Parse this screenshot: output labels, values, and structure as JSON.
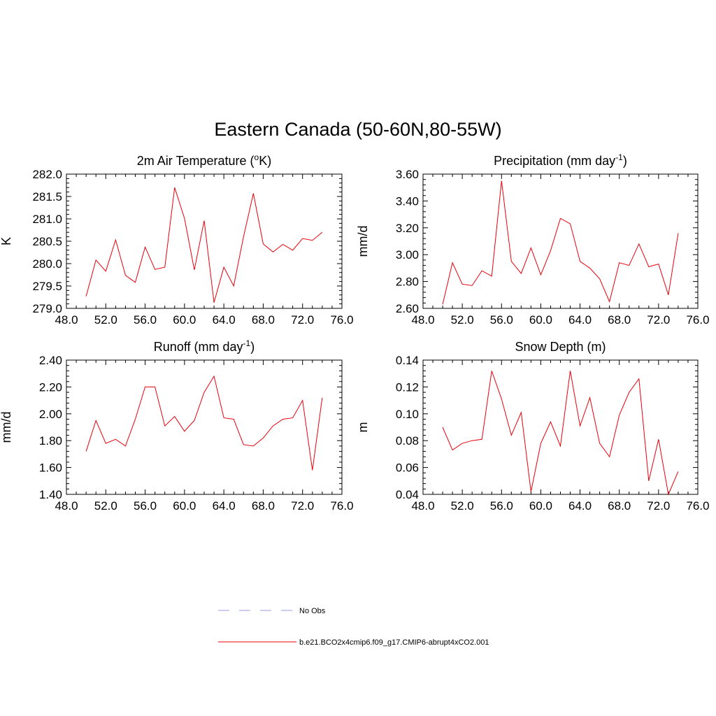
{
  "figure": {
    "title": "Eastern Canada (50-60N,80-55W)"
  },
  "legend": [
    {
      "label": "No Obs",
      "color": "#9999e6",
      "dashed": true
    },
    {
      "label": "b.e21.BCO2x4cmip6.f09_g17.CMIP6-abrupt4xCO2.001",
      "color": "#e8000b",
      "dashed": false
    }
  ],
  "series_color": "#e8000b",
  "chart_data": [
    {
      "type": "line",
      "title_main": "2m Air Temperature (",
      "title_sup": "o",
      "title_tail": "K)",
      "ylabel": "K",
      "xlim": [
        48,
        76
      ],
      "ylim": [
        279.0,
        282.0
      ],
      "xticks": [
        48,
        52,
        56,
        60,
        64,
        68,
        72,
        76
      ],
      "yticks": [
        279.0,
        279.5,
        280.0,
        280.5,
        281.0,
        281.5,
        282.0
      ],
      "xtick_labels": [
        "48.0",
        "52.0",
        "56.0",
        "60.0",
        "64.0",
        "68.0",
        "72.0",
        "76.0"
      ],
      "ytick_labels": [
        "279.0",
        "279.5",
        "280.0",
        "280.5",
        "281.0",
        "281.5",
        "282.0"
      ],
      "x": [
        50,
        51,
        52,
        53,
        54,
        55,
        56,
        57,
        58,
        59,
        60,
        61,
        62,
        63,
        64,
        65,
        66,
        67,
        68,
        69,
        70,
        71,
        72,
        73,
        74
      ],
      "series": [
        {
          "values": [
            279.27,
            280.08,
            279.83,
            280.53,
            279.74,
            279.58,
            280.37,
            279.87,
            279.92,
            281.7,
            281.01,
            279.86,
            280.96,
            279.13,
            279.92,
            279.5,
            280.6,
            281.57,
            280.44,
            280.26,
            280.43,
            280.3,
            280.56,
            280.52,
            280.7
          ]
        }
      ]
    },
    {
      "type": "line",
      "title_main": "Precipitation (mm day",
      "title_sup": "-1",
      "title_tail": ")",
      "ylabel": "mm/d",
      "xlim": [
        48,
        76
      ],
      "ylim": [
        2.6,
        3.6
      ],
      "xticks": [
        48,
        52,
        56,
        60,
        64,
        68,
        72,
        76
      ],
      "yticks": [
        2.6,
        2.8,
        3.0,
        3.2,
        3.4,
        3.6
      ],
      "xtick_labels": [
        "48.0",
        "52.0",
        "56.0",
        "60.0",
        "64.0",
        "68.0",
        "72.0",
        "76.0"
      ],
      "ytick_labels": [
        "2.60",
        "2.80",
        "3.00",
        "3.20",
        "3.40",
        "3.60"
      ],
      "x": [
        50,
        51,
        52,
        53,
        54,
        55,
        56,
        57,
        58,
        59,
        60,
        61,
        62,
        63,
        64,
        65,
        66,
        67,
        68,
        69,
        70,
        71,
        72,
        73,
        74
      ],
      "series": [
        {
          "values": [
            2.63,
            2.94,
            2.78,
            2.77,
            2.88,
            2.84,
            3.55,
            2.95,
            2.86,
            3.05,
            2.85,
            3.03,
            3.27,
            3.23,
            2.95,
            2.9,
            2.82,
            2.65,
            2.94,
            2.92,
            3.08,
            2.91,
            2.93,
            2.7,
            3.16
          ]
        }
      ]
    },
    {
      "type": "line",
      "title_main": "Runoff (mm day",
      "title_sup": "-1",
      "title_tail": ")",
      "ylabel": "mm/d",
      "xlim": [
        48,
        76
      ],
      "ylim": [
        1.4,
        2.4
      ],
      "xticks": [
        48,
        52,
        56,
        60,
        64,
        68,
        72,
        76
      ],
      "yticks": [
        1.4,
        1.6,
        1.8,
        2.0,
        2.2,
        2.4
      ],
      "xtick_labels": [
        "48.0",
        "52.0",
        "56.0",
        "60.0",
        "64.0",
        "68.0",
        "72.0",
        "76.0"
      ],
      "ytick_labels": [
        "1.40",
        "1.60",
        "1.80",
        "2.00",
        "2.20",
        "2.40"
      ],
      "x": [
        50,
        51,
        52,
        53,
        54,
        55,
        56,
        57,
        58,
        59,
        60,
        61,
        62,
        63,
        64,
        65,
        66,
        67,
        68,
        69,
        70,
        71,
        72,
        73,
        74
      ],
      "series": [
        {
          "values": [
            1.72,
            1.95,
            1.78,
            1.81,
            1.76,
            1.96,
            2.2,
            2.2,
            1.91,
            1.98,
            1.87,
            1.95,
            2.16,
            2.28,
            1.97,
            1.96,
            1.77,
            1.76,
            1.82,
            1.91,
            1.96,
            1.97,
            2.1,
            1.58,
            2.12
          ]
        }
      ]
    },
    {
      "type": "line",
      "title_main": "Snow Depth (m)",
      "title_sup": "",
      "title_tail": "",
      "ylabel": "m",
      "xlim": [
        48,
        76
      ],
      "ylim": [
        0.04,
        0.14
      ],
      "xticks": [
        48,
        52,
        56,
        60,
        64,
        68,
        72,
        76
      ],
      "yticks": [
        0.04,
        0.06,
        0.08,
        0.1,
        0.12,
        0.14
      ],
      "xtick_labels": [
        "48.0",
        "52.0",
        "56.0",
        "60.0",
        "64.0",
        "68.0",
        "72.0",
        "76.0"
      ],
      "ytick_labels": [
        "0.04",
        "0.06",
        "0.08",
        "0.10",
        "0.12",
        "0.14"
      ],
      "x": [
        50,
        51,
        52,
        53,
        54,
        55,
        56,
        57,
        58,
        59,
        60,
        61,
        62,
        63,
        64,
        65,
        66,
        67,
        68,
        69,
        70,
        71,
        72,
        73,
        74
      ],
      "series": [
        {
          "values": [
            0.09,
            0.073,
            0.078,
            0.08,
            0.081,
            0.132,
            0.111,
            0.084,
            0.101,
            0.042,
            0.078,
            0.094,
            0.076,
            0.132,
            0.091,
            0.112,
            0.078,
            0.068,
            0.099,
            0.116,
            0.126,
            0.05,
            0.081,
            0.04,
            0.057
          ]
        }
      ]
    }
  ]
}
